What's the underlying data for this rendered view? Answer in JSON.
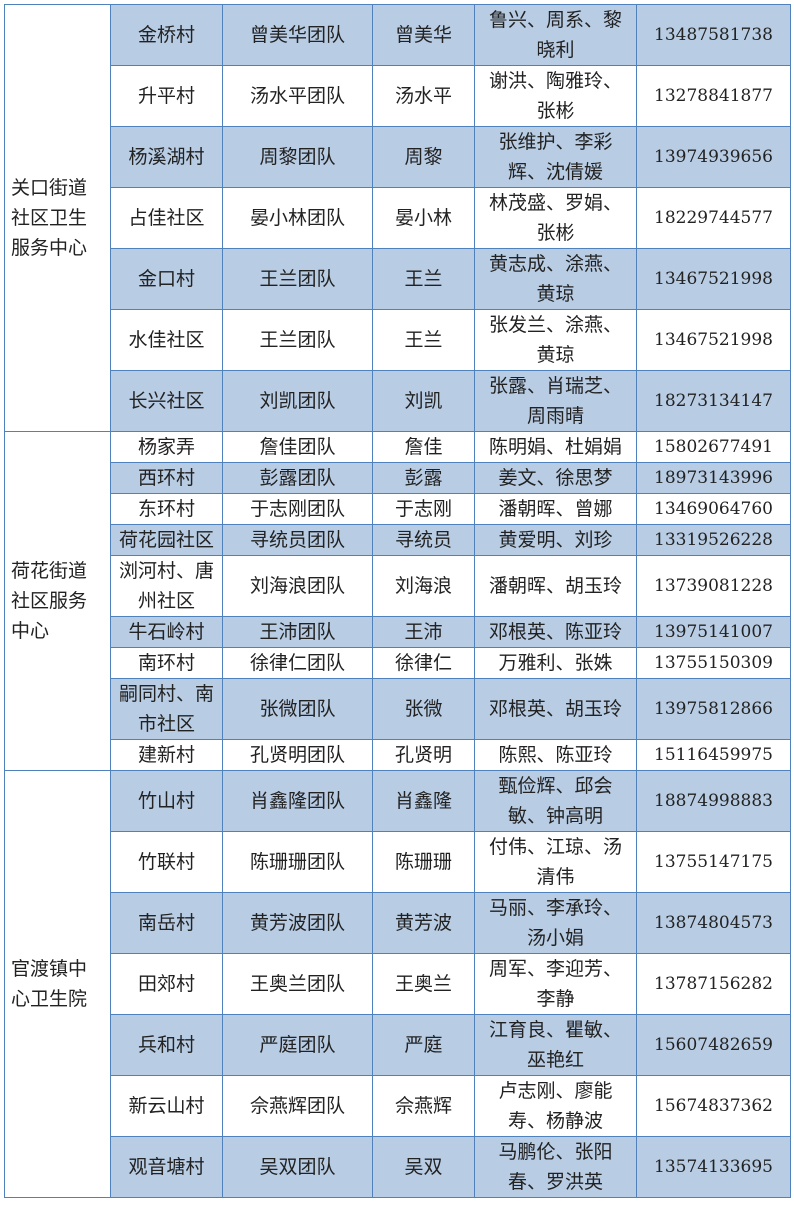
{
  "table": {
    "groups": [
      {
        "name": "关口街道社区卫生服务中心",
        "rows": [
          [
            "金桥村",
            "曾美华团队",
            "曾美华",
            "鲁兴、周系、黎晓利",
            "13487581738"
          ],
          [
            "升平村",
            "汤水平团队",
            "汤水平",
            "谢洪、陶雅玲、张彬",
            "13278841877"
          ],
          [
            "杨溪湖村",
            "周黎团队",
            "周黎",
            "张维护、李彩辉、沈倩媛",
            "13974939656"
          ],
          [
            "占佳社区",
            "晏小林团队",
            "晏小林",
            "林茂盛、罗娟、张彬",
            "18229744577"
          ],
          [
            "金口村",
            "王兰团队",
            "王兰",
            "黄志成、涂燕、黄琼",
            "13467521998"
          ],
          [
            "水佳社区",
            "王兰团队",
            "王兰",
            "张发兰、涂燕、黄琼",
            "13467521998"
          ],
          [
            "长兴社区",
            "刘凯团队",
            "刘凯",
            "张露、肖瑞芝、周雨晴",
            "18273134147"
          ]
        ]
      },
      {
        "name": "荷花街道社区服务中心",
        "rows": [
          [
            "杨家弄",
            "詹佳团队",
            "詹佳",
            "陈明娟、杜娟娟",
            "15802677491"
          ],
          [
            "西环村",
            "彭露团队",
            "彭露",
            "姜文、徐思梦",
            "18973143996"
          ],
          [
            "东环村",
            "于志刚团队",
            "于志刚",
            "潘朝晖、曾娜",
            "13469064760"
          ],
          [
            "荷花园社区",
            "寻统员团队",
            "寻统员",
            "黄爱明、刘珍",
            "13319526228"
          ],
          [
            "浏河村、唐州社区",
            "刘海浪团队",
            "刘海浪",
            "潘朝晖、胡玉玲",
            "13739081228"
          ],
          [
            "牛石岭村",
            "王沛团队",
            "王沛",
            "邓根英、陈亚玲",
            "13975141007"
          ],
          [
            "南环村",
            "徐律仁团队",
            "徐律仁",
            "万雅利、张姝",
            "13755150309"
          ],
          [
            "嗣同村、南市社区",
            "张微团队",
            "张微",
            "邓根英、胡玉玲",
            "13975812866"
          ],
          [
            "建新村",
            "孔贤明团队",
            "孔贤明",
            "陈熙、陈亚玲",
            "15116459975"
          ]
        ]
      },
      {
        "name": "官渡镇中心卫生院",
        "rows": [
          [
            "竹山村",
            "肖鑫隆团队",
            "肖鑫隆",
            "甄俭辉、邱会敏、钟高明",
            "18874998883"
          ],
          [
            "竹联村",
            "陈珊珊团队",
            "陈珊珊",
            "付伟、江琼、汤清伟",
            "13755147175"
          ],
          [
            "南岳村",
            "黄芳波团队",
            "黄芳波",
            "马丽、李承玲、汤小娟",
            "13874804573"
          ],
          [
            "田郊村",
            "王奥兰团队",
            "王奥兰",
            "周军、李迎芳、李静",
            "13787156282"
          ],
          [
            "兵和村",
            "严庭团队",
            "严庭",
            "江育良、瞿敏、巫艳红",
            "15607482659"
          ],
          [
            "新云山村",
            "佘燕辉团队",
            "佘燕辉",
            "卢志刚、廖能寿、杨静波",
            "15674837362"
          ],
          [
            "观音塘村",
            "吴双团队",
            "吴双",
            "马鹏伦、张阳春、罗洪英",
            "13574133695"
          ]
        ]
      }
    ]
  }
}
